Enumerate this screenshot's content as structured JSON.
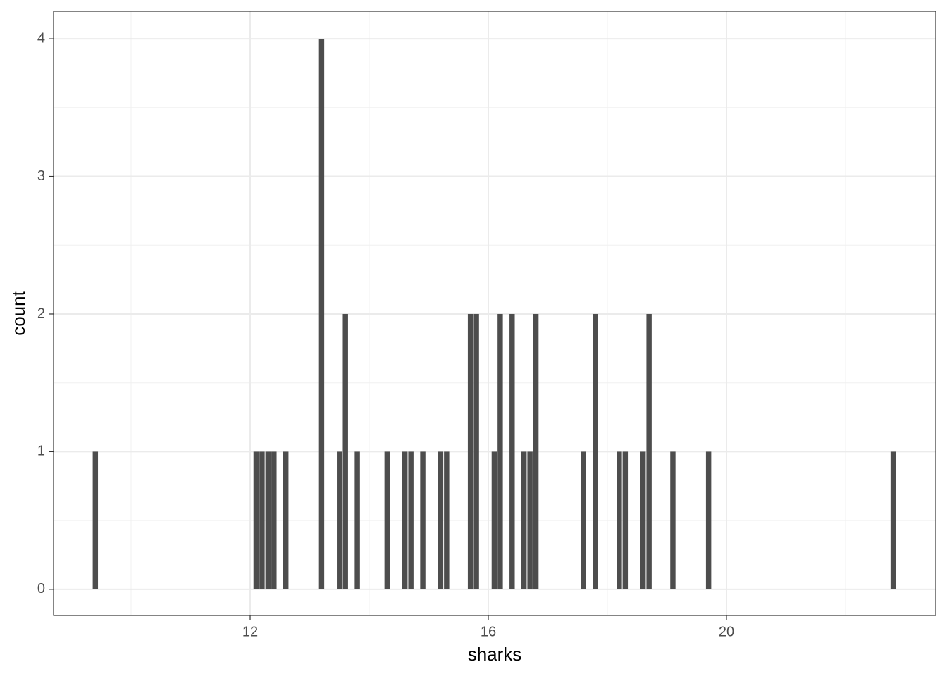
{
  "chart_data": {
    "type": "histogram",
    "x_label": "sharks",
    "y_label": "count",
    "bins": [
      9.35,
      9.45,
      9.55,
      9.65,
      9.75,
      9.85,
      9.95,
      10.05,
      10.15,
      10.25,
      10.35,
      10.45,
      10.55,
      10.65,
      10.75,
      10.85,
      10.95,
      11.05,
      11.15,
      11.25,
      11.35,
      11.45,
      11.55,
      11.65,
      11.75,
      11.85,
      11.95,
      12.05,
      12.15,
      12.25,
      12.35,
      12.45,
      12.55,
      12.65,
      12.75,
      12.85,
      12.95,
      13.05,
      13.15,
      13.25,
      13.35,
      13.45,
      13.55,
      13.65,
      13.75,
      13.85,
      13.95,
      14.05,
      14.15,
      14.25,
      14.35,
      14.45,
      14.55,
      14.65,
      14.75,
      14.85,
      14.95,
      15.05,
      15.15,
      15.25,
      15.35,
      15.45,
      15.55,
      15.65,
      15.75,
      15.85,
      15.95,
      16.05,
      16.15,
      16.25,
      16.35,
      16.45,
      16.55,
      16.65,
      16.75,
      16.85,
      16.95,
      17.05,
      17.15,
      17.25,
      17.35,
      17.45,
      17.55,
      17.65,
      17.75,
      17.85,
      17.95,
      18.05,
      18.15,
      18.25,
      18.35,
      18.45,
      18.55,
      18.65,
      18.75,
      18.85,
      18.95,
      19.05,
      19.15,
      19.25,
      19.35,
      19.45,
      19.55,
      19.65,
      19.75,
      19.85,
      19.95,
      20.05,
      20.15,
      20.25,
      20.35,
      20.45,
      20.55,
      20.65,
      20.75,
      20.85,
      20.95,
      21.05,
      21.15,
      21.25,
      21.35,
      21.45,
      21.55,
      21.65,
      21.75,
      21.85,
      21.95,
      22.05,
      22.15,
      22.25,
      22.35,
      22.45,
      22.55,
      22.65,
      22.75,
      22.85
    ],
    "values": [
      1,
      0,
      0,
      0,
      0,
      0,
      0,
      0,
      0,
      0,
      0,
      0,
      0,
      0,
      0,
      0,
      0,
      0,
      0,
      0,
      0,
      0,
      0,
      0,
      0,
      0,
      0,
      1,
      1,
      1,
      1,
      0,
      1,
      0,
      0,
      0,
      0,
      0,
      4,
      0,
      0,
      1,
      2,
      0,
      1,
      0,
      0,
      0,
      0,
      1,
      0,
      0,
      1,
      1,
      0,
      1,
      0,
      0,
      1,
      1,
      0,
      0,
      0,
      2,
      2,
      0,
      0,
      1,
      2,
      0,
      2,
      0,
      1,
      1,
      2,
      0,
      0,
      0,
      0,
      0,
      0,
      0,
      1,
      0,
      2,
      0,
      0,
      0,
      1,
      1,
      0,
      0,
      1,
      2,
      0,
      0,
      0,
      1,
      0,
      0,
      0,
      0,
      0,
      1,
      0,
      0,
      0,
      0,
      0,
      0,
      0,
      0,
      0,
      0,
      0,
      0,
      0,
      0,
      0,
      0,
      0,
      0,
      0,
      0,
      0,
      0,
      0,
      0,
      0,
      0,
      0,
      0,
      0,
      0,
      1
    ],
    "color": "#4d4d4d",
    "xlim": [
      8.698,
      23.515
    ],
    "xticks": [
      12,
      16,
      20
    ],
    "ylim": [
      -0.19,
      4.2
    ],
    "yticks": [
      0,
      1,
      2,
      3,
      4
    ],
    "grid": true
  }
}
